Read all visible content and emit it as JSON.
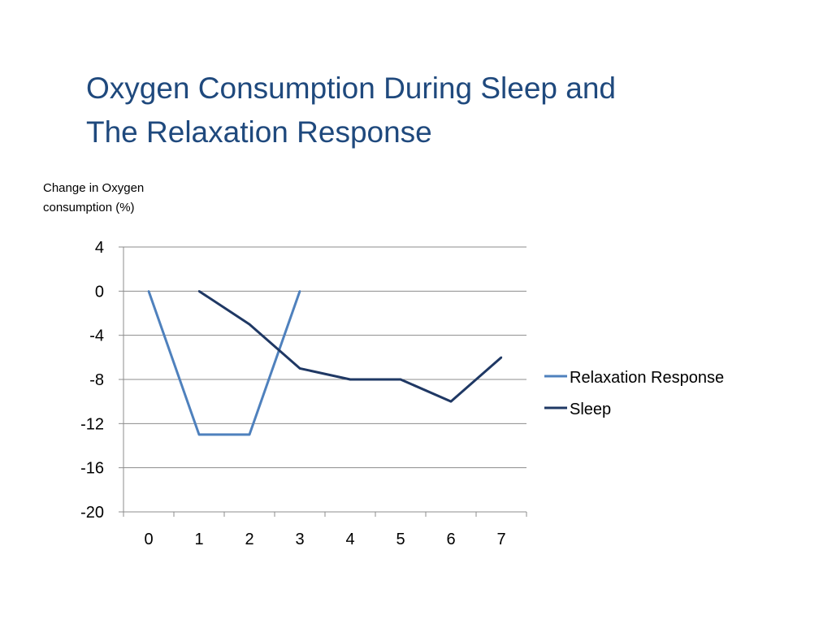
{
  "slide": {
    "title_line1": "Oxygen Consumption During Sleep and",
    "title_line2": "The Relaxation Response"
  },
  "chart_data": {
    "type": "line",
    "ylabel_line1": "Change in Oxygen",
    "ylabel_line2": "consumption (%)",
    "xlabel": "",
    "categories": [
      "0",
      "1",
      "2",
      "3",
      "4",
      "5",
      "6",
      "7"
    ],
    "ylim": [
      -20,
      4
    ],
    "yticks": [
      4,
      0,
      -4,
      -8,
      -12,
      -16,
      -20
    ],
    "grid": true,
    "legend_position": "right",
    "series": [
      {
        "name": "Relaxation Response",
        "color": "#4F81BD",
        "x": [
          0,
          1,
          2,
          3
        ],
        "y": [
          0,
          -13,
          -13,
          0
        ]
      },
      {
        "name": "Sleep",
        "color": "#1F3864",
        "x": [
          1,
          2,
          3,
          4,
          5,
          6,
          7
        ],
        "y": [
          0,
          -3,
          -7,
          -8,
          -8,
          -10,
          -6
        ]
      }
    ]
  }
}
